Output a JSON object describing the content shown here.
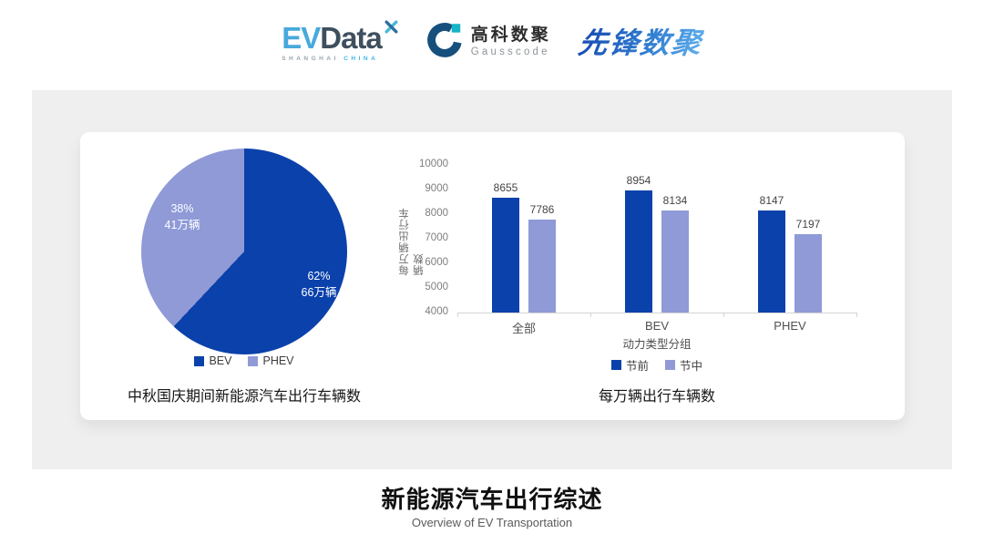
{
  "header": {
    "logos": {
      "evdata": {
        "part1": "EV",
        "part2": "Data",
        "sub1": "SHANGHAI",
        "sub2": "CHINA"
      },
      "gausscode": {
        "name_cn": "高科数聚",
        "name_en": "Gausscode"
      },
      "pioneer": {
        "name": "先锋数聚"
      }
    }
  },
  "colors": {
    "primary_blue": "#0b41ab",
    "secondary_periwinkle": "#8f9ad7",
    "panel_bg": "#efefef"
  },
  "chart_data": [
    {
      "type": "pie",
      "title": "中秋国庆期间新能源汽车出行车辆数",
      "start_angle": "12-oclock-clockwise",
      "legend_position": "bottom",
      "slices": [
        {
          "label": "BEV",
          "percent": 62,
          "value_label": "66万辆",
          "color": "#0b41ab"
        },
        {
          "label": "PHEV",
          "percent": 38,
          "value_label": "41万辆",
          "color": "#8f9ad7"
        }
      ]
    },
    {
      "type": "bar",
      "title": "每万辆出行车辆数",
      "categories": [
        "全部",
        "BEV",
        "PHEV"
      ],
      "series": [
        {
          "name": "节前",
          "values": [
            8655,
            8954,
            8147
          ],
          "color": "#0b41ab"
        },
        {
          "name": "节中",
          "values": [
            7786,
            8134,
            7197
          ],
          "color": "#8f9ad7"
        }
      ],
      "xlabel": "动力类型分组",
      "ylabel": "每万辆出行车辆数",
      "ylim": [
        4000,
        10000
      ],
      "ytick_step": 1000,
      "grid": false,
      "legend_position": "bottom"
    }
  ],
  "footer": {
    "title": "新能源汽车出行综述",
    "subtitle": "Overview of EV Transportation"
  }
}
